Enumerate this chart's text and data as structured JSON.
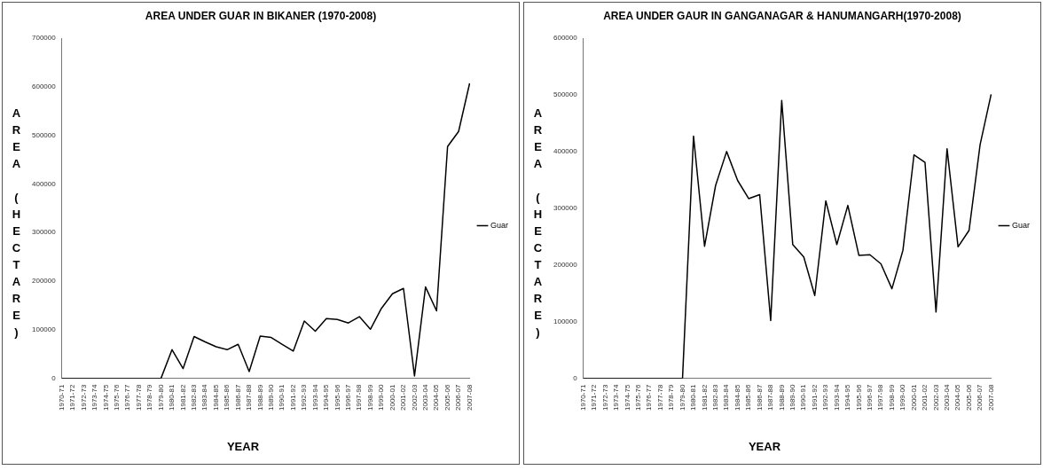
{
  "chart_data": [
    {
      "type": "line",
      "title": "AREA UNDER GUAR IN BIKANER (1970-2008)",
      "xlabel": "YEAR",
      "ylabel": "AREA (HECTARE)",
      "categories": [
        "1970-71",
        "1971-72",
        "1972-73",
        "1973-74",
        "1974-75",
        "1975-76",
        "1976-77",
        "1977-78",
        "1978-79",
        "1979-80",
        "1980-81",
        "1981-82",
        "1982-83",
        "1983-84",
        "1984-85",
        "1985-86",
        "1986-87",
        "1987-88",
        "1988-89",
        "1989-90",
        "1990-91",
        "1991-92",
        "1992-93",
        "1993-94",
        "1994-95",
        "1995-96",
        "1996-97",
        "1997-98",
        "1998-99",
        "1999-00",
        "2000-01",
        "2001-02",
        "2002-03",
        "2003-04",
        "2004-05",
        "2005-06",
        "2006-07",
        "2007-08"
      ],
      "series": [
        {
          "name": "Guar",
          "color": "#000000",
          "values": [
            0,
            0,
            0,
            0,
            0,
            0,
            0,
            0,
            0,
            0,
            59000,
            20000,
            86000,
            75000,
            65000,
            59000,
            70000,
            14000,
            87000,
            84000,
            70000,
            56000,
            118000,
            97000,
            123000,
            121000,
            114000,
            127000,
            101000,
            144000,
            174000,
            185000,
            5000,
            188000,
            139000,
            477000,
            508000,
            607000
          ]
        }
      ],
      "ylim": [
        0,
        700000
      ],
      "yticks": [
        0,
        100000,
        200000,
        300000,
        400000,
        500000,
        600000,
        700000
      ],
      "grid": false,
      "legend": "right",
      "marker": "none",
      "line_style": "solid"
    },
    {
      "type": "line",
      "title": "AREA UNDER GAUR IN GANGANAGAR & HANUMANGARH(1970-2008)",
      "xlabel": "YEAR",
      "ylabel": "AREA (HECTARE)",
      "categories": [
        "1970-71",
        "1971-72",
        "1972-73",
        "1973-74",
        "1974-75",
        "1975-76",
        "1976-77",
        "1977-78",
        "1978-79",
        "1979-80",
        "1980-81",
        "1981-82",
        "1982-83",
        "1983-84",
        "1984-85",
        "1985-86",
        "1986-87",
        "1987-88",
        "1988-89",
        "1989-90",
        "1990-91",
        "1991-92",
        "1992-93",
        "1993-94",
        "1994-95",
        "1995-96",
        "1996-97",
        "1997-98",
        "1998-99",
        "1999-00",
        "2000-01",
        "2001-02",
        "2002-03",
        "2003-04",
        "2004-05",
        "2005-06",
        "2006-07",
        "2007-08"
      ],
      "series": [
        {
          "name": "Guar",
          "color": "#000000",
          "values": [
            0,
            0,
            0,
            0,
            0,
            0,
            0,
            0,
            0,
            0,
            427000,
            233000,
            340000,
            400000,
            349000,
            317000,
            324000,
            102000,
            490000,
            236000,
            214000,
            146000,
            313000,
            236000,
            305000,
            217000,
            218000,
            202000,
            158000,
            226000,
            394000,
            381000,
            117000,
            405000,
            232000,
            261000,
            412000,
            501000
          ]
        }
      ],
      "ylim": [
        0,
        600000
      ],
      "yticks": [
        0,
        100000,
        200000,
        300000,
        400000,
        500000,
        600000
      ],
      "grid": false,
      "legend": "right",
      "marker": "none",
      "line_style": "solid"
    }
  ]
}
